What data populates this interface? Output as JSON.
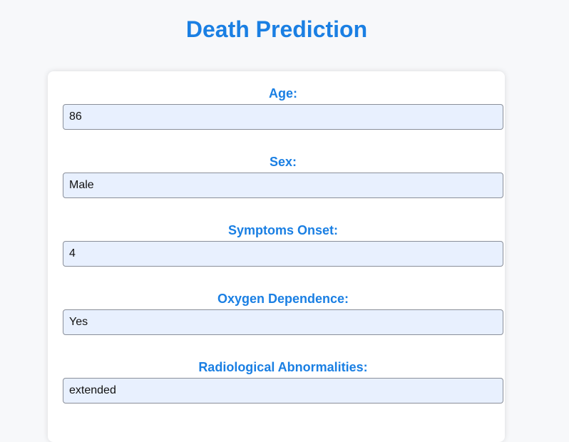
{
  "page": {
    "title": "Death Prediction"
  },
  "form": {
    "fields": [
      {
        "label": "Age:",
        "value": "86"
      },
      {
        "label": "Sex:",
        "value": "Male"
      },
      {
        "label": "Symptoms Onset:",
        "value": "4"
      },
      {
        "label": "Oxygen Dependence:",
        "value": "Yes"
      },
      {
        "label": "Radiological Abnormalities:",
        "value": "extended"
      }
    ]
  },
  "colors": {
    "accent": "#1a7fe3",
    "input_background": "#e8f0fe",
    "page_background": "#f7f8fa"
  }
}
